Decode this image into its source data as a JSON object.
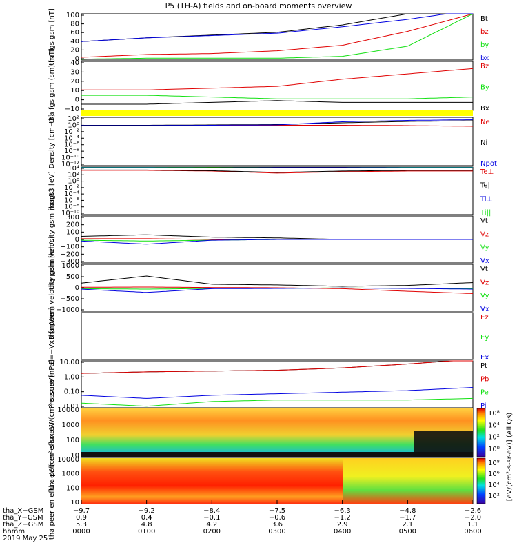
{
  "title": "P5 (TH-A) fields and on-board moments overview",
  "date_label": "2019 May 25",
  "colors": {
    "black": "#000000",
    "red": "#e00000",
    "green": "#10e010",
    "blue": "#0000e0",
    "yellow": "#ffff00"
  },
  "chart_data": [
    {
      "type": "line",
      "ylabel": "tha fgs gsm [nT]",
      "ylim": [
        0,
        100
      ],
      "ticks": [
        "100",
        "80",
        "60",
        "40",
        "20",
        "0"
      ],
      "legend": [
        "Bt",
        "bz",
        "by",
        "bx"
      ],
      "legend_colors": [
        "black",
        "red",
        "green",
        "blue"
      ],
      "x": [
        0,
        1,
        2,
        3,
        4,
        5,
        6
      ],
      "series": [
        {
          "name": "Bt",
          "values": [
            40,
            48,
            54,
            60,
            76,
            100,
            120
          ]
        },
        {
          "name": "bz",
          "values": [
            6,
            12,
            14,
            20,
            32,
            62,
            100
          ]
        },
        {
          "name": "by",
          "values": [
            2,
            4,
            4,
            4,
            8,
            30,
            100
          ]
        },
        {
          "name": "bx",
          "values": [
            40,
            48,
            53,
            58,
            72,
            88,
            108
          ]
        }
      ]
    },
    {
      "type": "line",
      "ylabel": "tha fgs gsm (sm) [nT]",
      "ylim": [
        -15,
        40
      ],
      "ticks": [
        "40",
        "30",
        "20",
        "10",
        "0",
        "−10"
      ],
      "legend": [
        "Bz",
        "By",
        "Bx"
      ],
      "legend_colors": [
        "red",
        "green",
        "black"
      ],
      "x": [
        0,
        1,
        2,
        3,
        4,
        5,
        6
      ],
      "series": [
        {
          "name": "Bz",
          "values": [
            8,
            8,
            10,
            12,
            20,
            26,
            32
          ]
        },
        {
          "name": "By",
          "values": [
            2,
            2,
            0,
            -2,
            -2,
            -2,
            0
          ]
        },
        {
          "name": "Bx",
          "values": [
            -8,
            -8,
            -6,
            -4,
            -6,
            -6,
            -6
          ]
        }
      ]
    },
    {
      "type": "line",
      "ylabel": "Density [cm−3]",
      "ylim": [
        -12,
        2
      ],
      "log": true,
      "ticks": [
        "10²",
        "10⁰",
        "10⁻²",
        "10⁻⁴",
        "10⁻⁶",
        "10⁻⁸",
        "10⁻¹⁰",
        "10⁻¹²"
      ],
      "legend": [
        "Ne",
        "Ni",
        "Npot"
      ],
      "legend_colors": [
        "red",
        "black",
        "blue"
      ],
      "x": [
        0,
        1,
        2,
        3,
        4,
        5,
        6
      ],
      "series": [
        {
          "name": "Ne",
          "values": [
            -0.5,
            -0.5,
            -0.4,
            -0.3,
            -0.3,
            -0.4,
            -0.6
          ]
        },
        {
          "name": "Ni",
          "values": [
            -0.3,
            -0.3,
            -0.2,
            -0.1,
            0.4,
            0.8,
            1.0
          ]
        },
        {
          "name": "Npot",
          "values": [
            -0.4,
            -0.4,
            -0.3,
            -0.2,
            0.7,
            1.1,
            1.3
          ]
        }
      ]
    },
    {
      "type": "line",
      "ylabel": "magt3 [eV]",
      "ylim": [
        -10,
        4
      ],
      "log": true,
      "ticks": [
        "10⁴",
        "10²",
        "10⁰",
        "10⁻²",
        "10⁻⁴",
        "10⁻⁶",
        "10⁻⁸",
        "10⁻¹⁰"
      ],
      "legend": [
        "Te⊥",
        "Te||",
        "Ti⊥",
        "Ti||"
      ],
      "legend_colors": [
        "red",
        "black",
        "blue",
        "green"
      ],
      "x": [
        0,
        1,
        2,
        3,
        4,
        5,
        6
      ],
      "series": [
        {
          "name": "Te⊥",
          "values": [
            3.0,
            3.0,
            2.8,
            2.2,
            2.6,
            2.8,
            2.8
          ]
        },
        {
          "name": "Te||",
          "values": [
            3.1,
            3.1,
            2.9,
            2.4,
            2.8,
            3.0,
            3.0
          ]
        },
        {
          "name": "Ti⊥",
          "values": [
            3.9,
            3.9,
            3.8,
            3.8,
            3.8,
            3.9,
            3.9
          ]
        },
        {
          "name": "Ti||",
          "values": [
            3.8,
            3.8,
            3.8,
            3.7,
            3.7,
            3.8,
            3.8
          ]
        }
      ]
    },
    {
      "type": "line",
      "ylabel": "tha peim velocity gsm [km/s]",
      "ylim": [
        -300,
        300
      ],
      "ticks": [
        "300",
        "200",
        "100",
        "0",
        "−100",
        "−200",
        "−300"
      ],
      "legend": [
        "Vt",
        "Vz",
        "Vy",
        "Vx"
      ],
      "legend_colors": [
        "black",
        "red",
        "green",
        "blue"
      ],
      "x": [
        0,
        1,
        2,
        3,
        4,
        5,
        6
      ],
      "series": [
        {
          "name": "Vt",
          "values": [
            40,
            60,
            30,
            20,
            0,
            0,
            0
          ]
        },
        {
          "name": "Vz",
          "values": [
            10,
            10,
            0,
            0,
            0,
            0,
            0
          ]
        },
        {
          "name": "Vy",
          "values": [
            -10,
            -20,
            -10,
            0,
            0,
            0,
            0
          ]
        },
        {
          "name": "Vx",
          "values": [
            -20,
            -60,
            -10,
            0,
            0,
            0,
            0
          ]
        }
      ]
    },
    {
      "type": "line",
      "ylabel": "tha peem velocity gsm [km/s]",
      "ylim": [
        -1000,
        1000
      ],
      "ticks": [
        "1000",
        "500",
        "0",
        "−500",
        "−1000"
      ],
      "legend": [
        "Vt",
        "Vz",
        "Vy",
        "Vx"
      ],
      "legend_colors": [
        "black",
        "red",
        "green",
        "blue"
      ],
      "x": [
        0,
        1,
        2,
        3,
        4,
        5,
        6
      ],
      "series": [
        {
          "name": "Vt",
          "values": [
            200,
            500,
            150,
            120,
            60,
            100,
            220
          ]
        },
        {
          "name": "Vz",
          "values": [
            20,
            30,
            10,
            0,
            -40,
            -150,
            -250
          ]
        },
        {
          "name": "Vy",
          "values": [
            -40,
            -60,
            -30,
            -20,
            -10,
            -20,
            -40
          ]
        },
        {
          "name": "Vx",
          "values": [
            -60,
            -200,
            -40,
            -30,
            -10,
            -30,
            -60
          ]
        }
      ]
    },
    {
      "type": "line",
      "ylabel": "E=−VxB [mV/m]",
      "legend": [
        "Ez",
        "Ey",
        "Ex"
      ],
      "legend_colors": [
        "red",
        "green",
        "blue"
      ],
      "x": [],
      "series": []
    },
    {
      "type": "line",
      "ylabel": "Pressure [nPa]",
      "ylim": [
        -2,
        1
      ],
      "log": true,
      "ticks": [
        "10.00",
        "1.00",
        "0.10",
        "0.01"
      ],
      "legend": [
        "Pt",
        "Pb",
        "Pe",
        "Pi"
      ],
      "legend_colors": [
        "black",
        "red",
        "green",
        "blue"
      ],
      "x": [
        0,
        1,
        2,
        3,
        4,
        5,
        6
      ],
      "series": [
        {
          "name": "Pt",
          "values": [
            0.2,
            0.3,
            0.35,
            0.4,
            0.55,
            0.8,
            1.1
          ]
        },
        {
          "name": "Pb",
          "values": [
            0.2,
            0.3,
            0.35,
            0.4,
            0.55,
            0.8,
            1.1
          ]
        },
        {
          "name": "Pe",
          "values": [
            -1.7,
            -1.9,
            -1.6,
            -1.5,
            -1.5,
            -1.5,
            -1.4
          ]
        },
        {
          "name": "Pi",
          "values": [
            -1.2,
            -1.4,
            -1.2,
            -1.1,
            -1.0,
            -0.9,
            -0.7
          ]
        }
      ]
    },
    {
      "type": "heatmap",
      "ylabel": "tha peir en eflux eV/(cm²-s-sr-eV)",
      "ticks": [
        "10000",
        "1000",
        "100",
        "10"
      ],
      "colorbar_ticks": [
        "10⁸",
        "10⁴",
        "10²",
        "10⁰"
      ],
      "colorbar_label": "[eV/(cm²-s-sr-eV)] (All Qs)"
    },
    {
      "type": "heatmap",
      "ylabel": "tha peer en eflux eV/(cm²-s-sr-eV)",
      "ticks": [
        "10000",
        "1000",
        "100",
        "10"
      ],
      "colorbar_ticks": [
        "10⁸",
        "10⁶",
        "10⁴",
        "10²"
      ]
    }
  ],
  "xaxis": {
    "row_labels": [
      "tha_X−GSM",
      "tha_Y−GSM",
      "tha_Z−GSM",
      "hhmm"
    ],
    "columns": [
      {
        "x": "−9.7",
        "y": "0.9",
        "z": "5.3",
        "t": "0000"
      },
      {
        "x": "−9.2",
        "y": "0.4",
        "z": "4.8",
        "t": "0100"
      },
      {
        "x": "−8.4",
        "y": "−0.1",
        "z": "4.2",
        "t": "0200"
      },
      {
        "x": "−7.5",
        "y": "−0.6",
        "z": "3.6",
        "t": "0300"
      },
      {
        "x": "−6.3",
        "y": "−1.2",
        "z": "2.9",
        "t": "0400"
      },
      {
        "x": "−4.8",
        "y": "−1.7",
        "z": "2.1",
        "t": "0500"
      },
      {
        "x": "−2.6",
        "y": "−2.0",
        "z": "1.1",
        "t": "0600"
      }
    ]
  }
}
